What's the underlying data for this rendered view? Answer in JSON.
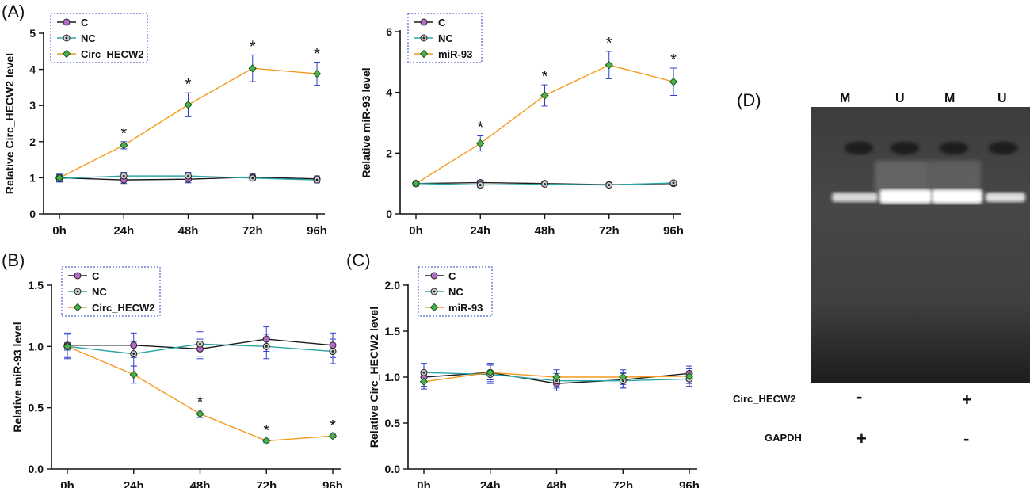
{
  "colors": {
    "C": "#1a1a1a",
    "NC": "#2aa6a6",
    "treat": "#f39a1e",
    "marker_C": "#b46ac8",
    "marker_NC": "#c9c9c9",
    "marker_treat": "#4caf50",
    "error_bar": "#2f3fc8",
    "legend_border": "#2f3fc8"
  },
  "chart_data": [
    {
      "panel": "(A)",
      "type": "line",
      "x": [
        "0h",
        "24h",
        "48h",
        "72h",
        "96h"
      ],
      "ylabel": "Relative Circ_HECW2 level",
      "ylim": [
        0,
        5
      ],
      "yticks": [
        0,
        1,
        2,
        3,
        4,
        5
      ],
      "legend_position": "top-left",
      "series": [
        {
          "name": "C",
          "values": [
            1.0,
            0.94,
            0.96,
            1.02,
            0.97
          ],
          "errors": [
            0.1,
            0.1,
            0.1,
            0.08,
            0.08
          ]
        },
        {
          "name": "NC",
          "values": [
            0.98,
            1.05,
            1.05,
            0.99,
            0.94
          ],
          "errors": [
            0.1,
            0.1,
            0.1,
            0.08,
            0.08
          ]
        },
        {
          "name": "Circ_HECW2",
          "values": [
            1.0,
            1.9,
            3.02,
            4.03,
            3.88
          ],
          "errors": [
            0.05,
            0.1,
            0.33,
            0.37,
            0.32
          ]
        }
      ],
      "significance": [
        "",
        "*",
        "*",
        "*",
        "*"
      ]
    },
    {
      "panel": "",
      "type": "line",
      "x": [
        "0h",
        "24h",
        "48h",
        "72h",
        "96h"
      ],
      "ylabel": "Relative miR-93 level",
      "ylim": [
        0,
        6
      ],
      "yticks": [
        0,
        2,
        4,
        6
      ],
      "legend_position": "top-left",
      "series": [
        {
          "name": "C",
          "values": [
            1.0,
            1.03,
            1.0,
            0.96,
            1.0
          ],
          "errors": [
            0.08,
            0.08,
            0.06,
            0.06,
            0.06
          ]
        },
        {
          "name": "NC",
          "values": [
            1.0,
            0.95,
            0.98,
            0.95,
            1.02
          ],
          "errors": [
            0.08,
            0.08,
            0.06,
            0.06,
            0.06
          ]
        },
        {
          "name": "miR-93",
          "values": [
            1.0,
            2.32,
            3.9,
            4.9,
            4.35
          ],
          "errors": [
            0.05,
            0.25,
            0.35,
            0.45,
            0.45
          ]
        }
      ],
      "significance": [
        "",
        "*",
        "*",
        "*",
        "*"
      ]
    },
    {
      "panel": "(B)",
      "type": "line",
      "x": [
        "0h",
        "24h",
        "48h",
        "72h",
        "96h"
      ],
      "ylabel": "Relative miR-93 level",
      "ylim": [
        0,
        1.5
      ],
      "yticks": [
        0.0,
        0.5,
        1.0,
        1.5
      ],
      "legend_position": "top-left",
      "series": [
        {
          "name": "C",
          "values": [
            1.01,
            1.01,
            0.98,
            1.06,
            1.01
          ],
          "errors": [
            0.1,
            0.1,
            0.08,
            0.1,
            0.1
          ]
        },
        {
          "name": "NC",
          "values": [
            1.0,
            0.94,
            1.02,
            1.0,
            0.96
          ],
          "errors": [
            0.1,
            0.1,
            0.1,
            0.1,
            0.1
          ]
        },
        {
          "name": "Circ_HECW2",
          "values": [
            1.0,
            0.77,
            0.45,
            0.23,
            0.27
          ],
          "errors": [
            0.03,
            0.07,
            0.03,
            0.015,
            0.015
          ]
        }
      ],
      "significance": [
        "",
        "",
        "*",
        "*",
        "*"
      ]
    },
    {
      "panel": "(C)",
      "type": "line",
      "x": [
        "0h",
        "24h",
        "48h",
        "72h",
        "96h"
      ],
      "ylabel": "Relative Circ_HECW2 level",
      "ylim": [
        0,
        2.0
      ],
      "yticks": [
        0.0,
        0.5,
        1.0,
        1.5,
        2.0
      ],
      "legend_position": "top-left",
      "series": [
        {
          "name": "C",
          "values": [
            1.0,
            1.05,
            0.93,
            0.97,
            1.04
          ],
          "errors": [
            0.1,
            0.1,
            0.08,
            0.08,
            0.08
          ]
        },
        {
          "name": "NC",
          "values": [
            1.05,
            1.03,
            0.96,
            0.96,
            0.98
          ],
          "errors": [
            0.1,
            0.1,
            0.08,
            0.08,
            0.08
          ]
        },
        {
          "name": "miR-93",
          "values": [
            0.95,
            1.05,
            1.0,
            1.0,
            1.01
          ],
          "errors": [
            0.08,
            0.08,
            0.08,
            0.08,
            0.08
          ]
        }
      ],
      "significance": [
        "",
        "",
        "",
        "",
        ""
      ]
    }
  ],
  "gel": {
    "panel": "(D)",
    "lanes": [
      "M",
      "U",
      "M",
      "U"
    ],
    "rows": [
      {
        "label": "Circ_HECW2",
        "signs": [
          "-",
          "+"
        ]
      },
      {
        "label": "GAPDH",
        "signs": [
          "+",
          "-"
        ]
      }
    ]
  }
}
